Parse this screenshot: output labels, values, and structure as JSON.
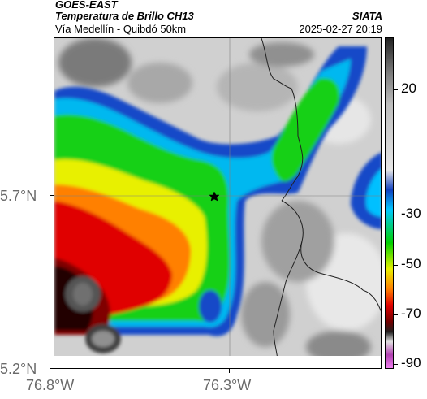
{
  "header": {
    "satellite": "GOES-EAST",
    "product": "Temperatura de Brillo CH13",
    "location": "Vía Medellín - Quibdó 50km",
    "organization": "SIATA",
    "timestamp": "2025-02-27 20:19"
  },
  "axes": {
    "lat_labels": [
      "5.7°N",
      "5.2°N"
    ],
    "lon_labels": [
      "76.8°W",
      "76.3°W"
    ]
  },
  "colorbar": {
    "labels": [
      "20",
      "-30",
      "-50",
      "-70",
      "-90"
    ],
    "stops": [
      "#222222",
      "#777777",
      "#bdbdbd",
      "#e6e6e6",
      "#1040c0",
      "#00c8ff",
      "#00d000",
      "#e8f000",
      "#ff8000",
      "#e00000",
      "#700000",
      "#202020",
      "#e0e0e0",
      "#b040b0",
      "#f080f0"
    ]
  },
  "map": {
    "marker": "star-marker",
    "colors": {
      "clear": "#c8c8c8",
      "light_gray": "#e8e8e8",
      "dark_gray": "#8a8a8a",
      "blue": "#1040c0",
      "cyan": "#00c8ff",
      "green": "#10d010",
      "yellow": "#f0f000",
      "orange": "#ff8000",
      "red": "#e00000",
      "dark_red": "#800000",
      "black": "#202020",
      "white_gray": "#c8c8c8"
    }
  }
}
